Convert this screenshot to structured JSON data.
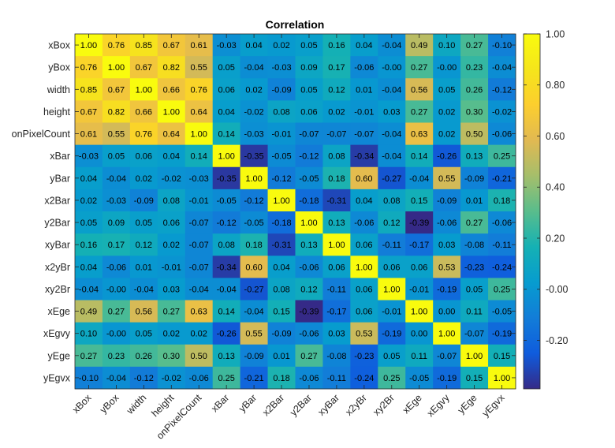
{
  "chart_data": {
    "type": "heatmap",
    "title": "Correlation",
    "labels": [
      "xBox",
      "yBox",
      "width",
      "height",
      "onPixelCount",
      "xBar",
      "yBar",
      "x2Bar",
      "y2Bar",
      "xyBar",
      "x2yBr",
      "xy2Br",
      "xEge",
      "xEgvy",
      "yEge",
      "yEgvx"
    ],
    "values": [
      [
        1.0,
        0.76,
        0.85,
        0.67,
        0.61,
        -0.03,
        0.04,
        0.02,
        0.05,
        0.16,
        0.04,
        -0.04,
        0.49,
        0.1,
        0.27,
        -0.1
      ],
      [
        0.76,
        1.0,
        0.67,
        0.82,
        0.55,
        0.05,
        -0.04,
        -0.03,
        0.09,
        0.17,
        -0.06,
        -0.0,
        0.27,
        -0.0,
        0.23,
        -0.04
      ],
      [
        0.85,
        0.67,
        1.0,
        0.66,
        0.76,
        0.06,
        0.02,
        -0.09,
        0.05,
        0.12,
        0.01,
        -0.04,
        0.56,
        0.05,
        0.26,
        -0.12
      ],
      [
        0.67,
        0.82,
        0.66,
        1.0,
        0.64,
        0.04,
        -0.02,
        0.08,
        0.06,
        0.02,
        -0.01,
        0.03,
        0.27,
        0.02,
        0.3,
        -0.02
      ],
      [
        0.61,
        0.55,
        0.76,
        0.64,
        1.0,
        0.14,
        -0.03,
        -0.01,
        -0.07,
        -0.07,
        -0.07,
        -0.04,
        0.63,
        0.02,
        0.5,
        -0.06
      ],
      [
        -0.03,
        0.05,
        0.06,
        0.04,
        0.14,
        1.0,
        -0.35,
        -0.05,
        -0.12,
        0.08,
        -0.34,
        -0.04,
        0.14,
        -0.26,
        0.13,
        0.25
      ],
      [
        0.04,
        -0.04,
        0.02,
        -0.02,
        -0.03,
        -0.35,
        1.0,
        -0.12,
        -0.05,
        0.18,
        0.6,
        -0.27,
        -0.04,
        0.55,
        -0.09,
        -0.21
      ],
      [
        0.02,
        -0.03,
        -0.09,
        0.08,
        -0.01,
        -0.05,
        -0.12,
        1.0,
        -0.18,
        -0.31,
        0.04,
        0.08,
        0.15,
        -0.09,
        0.01,
        0.18
      ],
      [
        0.05,
        0.09,
        0.05,
        0.06,
        -0.07,
        -0.12,
        -0.05,
        -0.18,
        1.0,
        0.13,
        -0.06,
        0.12,
        -0.39,
        -0.06,
        0.27,
        -0.06
      ],
      [
        0.16,
        0.17,
        0.12,
        0.02,
        -0.07,
        0.08,
        0.18,
        -0.31,
        0.13,
        1.0,
        0.06,
        -0.11,
        -0.17,
        0.03,
        -0.08,
        -0.11
      ],
      [
        0.04,
        -0.06,
        0.01,
        -0.01,
        -0.07,
        -0.34,
        0.6,
        0.04,
        -0.06,
        0.06,
        1.0,
        0.06,
        0.06,
        0.53,
        -0.23,
        -0.24
      ],
      [
        -0.04,
        -0.0,
        -0.04,
        0.03,
        -0.04,
        -0.04,
        -0.27,
        0.08,
        0.12,
        -0.11,
        0.06,
        1.0,
        -0.01,
        -0.19,
        0.05,
        0.25
      ],
      [
        0.49,
        0.27,
        0.56,
        0.27,
        0.63,
        0.14,
        -0.04,
        0.15,
        -0.39,
        -0.17,
        0.06,
        -0.01,
        1.0,
        0.0,
        0.11,
        -0.05
      ],
      [
        0.1,
        -0.0,
        0.05,
        0.02,
        0.02,
        -0.26,
        0.55,
        -0.09,
        -0.06,
        0.03,
        0.53,
        -0.19,
        0.0,
        1.0,
        -0.07,
        -0.19
      ],
      [
        0.27,
        0.23,
        0.26,
        0.3,
        0.5,
        0.13,
        -0.09,
        0.01,
        0.27,
        -0.08,
        -0.23,
        0.05,
        0.11,
        -0.07,
        1.0,
        0.15
      ],
      [
        -0.1,
        -0.04,
        -0.12,
        -0.02,
        -0.06,
        0.25,
        -0.21,
        0.18,
        -0.06,
        -0.11,
        -0.24,
        0.25,
        -0.05,
        -0.19,
        0.15,
        1.0
      ]
    ],
    "colormap": "parula",
    "colorbar": {
      "range": [
        -0.39,
        1.0
      ],
      "ticks": [
        1.0,
        0.8,
        0.6,
        0.4,
        0.2,
        -0.0,
        -0.2
      ],
      "tick_labels": [
        "1.00",
        "0.80",
        "0.60",
        "0.40",
        "0.20",
        "-0.00",
        "-0.20"
      ]
    }
  }
}
